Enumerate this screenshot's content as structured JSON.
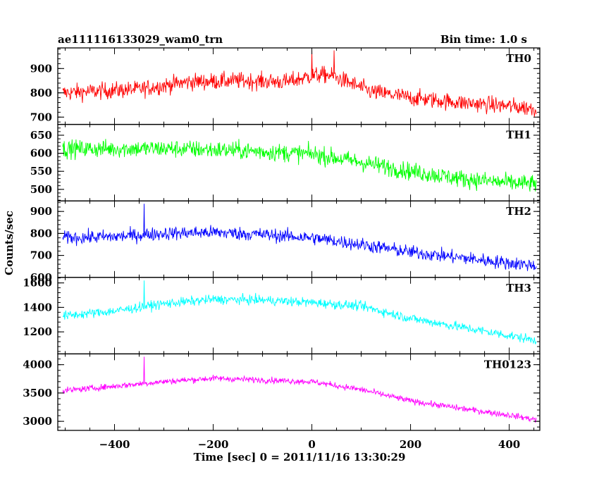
{
  "header": {
    "title": "ae111116133029_wam0_trn",
    "bin_time": "Bin time: 1.0 s"
  },
  "chart_data": {
    "type": "line",
    "title": "ae111116133029_wam0_trn",
    "xlabel": "Time [sec] 0 = 2011/11/16 13:30:29",
    "ylabel": "Counts/sec",
    "xlim": [
      -515,
      462
    ],
    "x_ticks": [
      -400,
      -200,
      0,
      200,
      400
    ],
    "x_tick_labels": [
      "−400",
      "−200",
      "0",
      "200",
      "400"
    ],
    "x_data_range": [
      -505,
      455
    ],
    "bin_time_s": 1.0,
    "grid": false,
    "panels": [
      {
        "name": "TH0",
        "color": "#ff0000",
        "ylim": [
          670,
          985
        ],
        "y_ticks": [
          700,
          800,
          900
        ],
        "trend": [
          [
            -505,
            800
          ],
          [
            -350,
            815
          ],
          [
            -250,
            845
          ],
          [
            -150,
            850
          ],
          [
            -50,
            845
          ],
          [
            0,
            870
          ],
          [
            30,
            875
          ],
          [
            60,
            855
          ],
          [
            120,
            805
          ],
          [
            200,
            780
          ],
          [
            300,
            760
          ],
          [
            400,
            745
          ],
          [
            455,
            735
          ]
        ],
        "noise": 45,
        "spikes": [
          [
            0,
            975
          ],
          [
            45,
            975
          ]
        ]
      },
      {
        "name": "TH1",
        "color": "#00ff00",
        "ylim": [
          468,
          680
        ],
        "y_ticks": [
          500,
          550,
          600,
          650
        ],
        "trend": [
          [
            -505,
            612
          ],
          [
            -300,
            613
          ],
          [
            -150,
            608
          ],
          [
            0,
            598
          ],
          [
            100,
            575
          ],
          [
            200,
            550
          ],
          [
            300,
            530
          ],
          [
            400,
            518
          ],
          [
            455,
            515
          ]
        ],
        "noise": 32,
        "spikes": []
      },
      {
        "name": "TH2",
        "color": "#0000ff",
        "ylim": [
          600,
          948
        ],
        "y_ticks": [
          600,
          700,
          800,
          900
        ],
        "trend": [
          [
            -505,
            780
          ],
          [
            -400,
            785
          ],
          [
            -300,
            800
          ],
          [
            -200,
            805
          ],
          [
            -100,
            795
          ],
          [
            0,
            780
          ],
          [
            100,
            750
          ],
          [
            200,
            715
          ],
          [
            300,
            690
          ],
          [
            400,
            665
          ],
          [
            455,
            655
          ]
        ],
        "noise": 40,
        "spikes": [
          [
            -340,
            935
          ]
        ]
      },
      {
        "name": "TH3",
        "color": "#00ffff",
        "ylim": [
          1020,
          1645
        ],
        "y_ticks": [
          1200,
          1400,
          1600
        ],
        "trend": [
          [
            -505,
            1330
          ],
          [
            -400,
            1370
          ],
          [
            -300,
            1430
          ],
          [
            -200,
            1465
          ],
          [
            -100,
            1460
          ],
          [
            0,
            1440
          ],
          [
            100,
            1410
          ],
          [
            200,
            1310
          ],
          [
            300,
            1240
          ],
          [
            400,
            1170
          ],
          [
            455,
            1130
          ]
        ],
        "noise": 50,
        "spikes": [
          [
            -340,
            1620
          ]
        ]
      },
      {
        "name": "TH0123",
        "color": "#ff00ff",
        "ylim": [
          2840,
          4190
        ],
        "y_ticks": [
          3000,
          3500,
          4000
        ],
        "trend": [
          [
            -505,
            3540
          ],
          [
            -400,
            3620
          ],
          [
            -300,
            3700
          ],
          [
            -200,
            3760
          ],
          [
            -100,
            3730
          ],
          [
            0,
            3700
          ],
          [
            100,
            3560
          ],
          [
            200,
            3360
          ],
          [
            300,
            3230
          ],
          [
            400,
            3110
          ],
          [
            455,
            3030
          ]
        ],
        "noise": 70,
        "spikes": [
          [
            -340,
            4140
          ]
        ]
      }
    ]
  }
}
